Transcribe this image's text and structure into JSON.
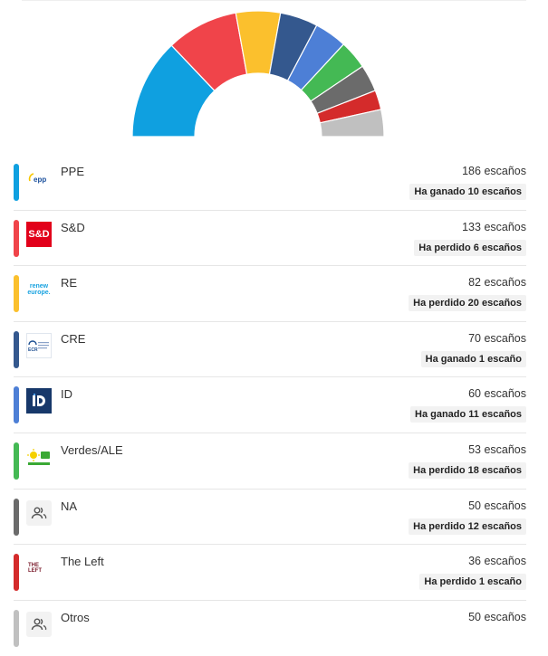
{
  "chart_data": {
    "type": "pie",
    "variant": "semicircle",
    "categories": [
      "PPE",
      "S&D",
      "RE",
      "CRE",
      "ID",
      "Verdes/ALE",
      "NA",
      "The Left",
      "Otros"
    ],
    "values": [
      186,
      133,
      82,
      70,
      60,
      53,
      50,
      36,
      50
    ],
    "colors": [
      "#0fa0e0",
      "#f0444a",
      "#fbc02d",
      "#34588e",
      "#4d7fd6",
      "#44b954",
      "#6b6b6b",
      "#d42b2b",
      "#c0c0c0"
    ],
    "title": "",
    "xlabel": "",
    "ylabel": ""
  },
  "parties": [
    {
      "name": "PPE",
      "seats": "186 escaños",
      "change": "Ha ganado 10 escaños",
      "color": "#0fa0e0",
      "logo": "epp-logo"
    },
    {
      "name": "S&D",
      "seats": "133 escaños",
      "change": "Ha perdido 6 escaños",
      "color": "#f0444a",
      "logo": "sd-logo",
      "logo_text": "S&D"
    },
    {
      "name": "RE",
      "seats": "82 escaños",
      "change": "Ha perdido 20 escaños",
      "color": "#fbc02d",
      "logo": "renew-europe-logo",
      "logo_text_1": "renew",
      "logo_text_2": "europe."
    },
    {
      "name": "CRE",
      "seats": "70 escaños",
      "change": "Ha ganado 1 escaño",
      "color": "#34588e",
      "logo": "ecr-logo",
      "logo_text": "ECR"
    },
    {
      "name": "ID",
      "seats": "60 escaños",
      "change": "Ha ganado 11 escaños",
      "color": "#4d7fd6",
      "logo": "id-logo"
    },
    {
      "name": "Verdes/ALE",
      "seats": "53 escaños",
      "change": "Ha perdido 18 escaños",
      "color": "#44b954",
      "logo": "greens-logo"
    },
    {
      "name": "NA",
      "seats": "50 escaños",
      "change": "Ha perdido 12 escaños",
      "color": "#6b6b6b",
      "logo": "people-icon"
    },
    {
      "name": "The Left",
      "seats": "36 escaños",
      "change": "Ha perdido 1 escaño",
      "color": "#d42b2b",
      "logo": "the-left-logo",
      "logo_text_1": "THE",
      "logo_text_2": "LEFT"
    },
    {
      "name": "Otros",
      "seats": "50 escaños",
      "change": "",
      "color": "#c0c0c0",
      "logo": "people-icon"
    }
  ]
}
